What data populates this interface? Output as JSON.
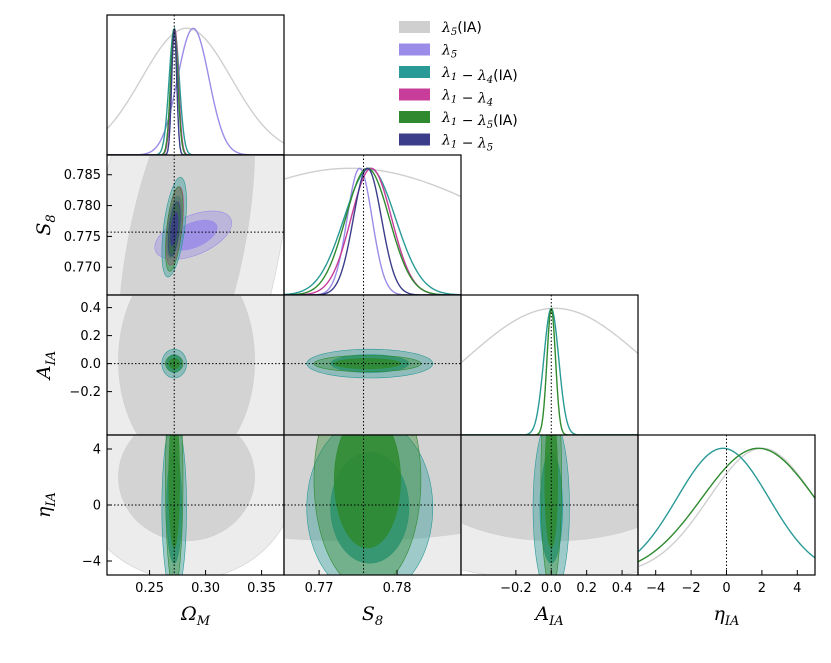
{
  "chart_data": {
    "type": "corner",
    "parameters": [
      {
        "key": "om",
        "label": "Ω_M",
        "label_main": "Ω",
        "label_sub": "M",
        "range": [
          0.212,
          0.37
        ],
        "fiducial": 0.272,
        "ticks": [
          {
            "v": 0.25,
            "t": "0.25"
          },
          {
            "v": 0.3,
            "t": "0.30"
          },
          {
            "v": 0.35,
            "t": "0.35"
          }
        ]
      },
      {
        "key": "s8",
        "label": "S_8",
        "label_main": "S",
        "label_sub": "8",
        "range": [
          0.7655,
          0.7882
        ],
        "fiducial": 0.7757,
        "ticks": [
          {
            "v": 0.77,
            "t": "0.770"
          },
          {
            "v": 0.775,
            "t": "0.775"
          },
          {
            "v": 0.78,
            "t": "0.780"
          },
          {
            "v": 0.785,
            "t": "0.785"
          }
        ],
        "xticks": [
          {
            "v": 0.77,
            "t": "0.77"
          },
          {
            "v": 0.78,
            "t": "0.78"
          }
        ]
      },
      {
        "key": "aia",
        "label": "A_IA",
        "label_main": "A",
        "label_sub": "IA",
        "range": [
          -0.51,
          0.49
        ],
        "fiducial": 0.0,
        "ticks": [
          {
            "v": -0.2,
            "t": "−0.2"
          },
          {
            "v": 0.0,
            "t": "0.0"
          },
          {
            "v": 0.2,
            "t": "0.2"
          },
          {
            "v": 0.4,
            "t": "0.4"
          }
        ]
      },
      {
        "key": "eia",
        "label": "η_IA",
        "label_main": "η",
        "label_sub": "IA",
        "range": [
          -5.0,
          5.0
        ],
        "fiducial": 0.0,
        "ticks": [
          {
            "v": -4,
            "t": "−4"
          },
          {
            "v": 0,
            "t": "0"
          },
          {
            "v": 4,
            "t": "4"
          }
        ],
        "xticks": [
          {
            "v": -4,
            "t": "−4"
          },
          {
            "v": -2,
            "t": "−2"
          },
          {
            "v": 0,
            "t": "0"
          },
          {
            "v": 2,
            "t": "2"
          },
          {
            "v": 4,
            "t": "4"
          }
        ]
      }
    ],
    "series": [
      {
        "name": "λ_5(IA)",
        "label_parts": [
          {
            "t": "λ"
          },
          {
            "t": "5",
            "sub": true
          },
          {
            "t": "(IA)",
            "plain": true
          }
        ],
        "color": "#cfcfcf",
        "mean": {
          "om": 0.283,
          "s8": 0.774,
          "aia": 0.02,
          "eia": 2.0
        },
        "sigma": {
          "om": 0.04,
          "s8": 0.02,
          "aia": 0.5,
          "eia": 3.0
        }
      },
      {
        "name": "λ_5",
        "label_parts": [
          {
            "t": "λ"
          },
          {
            "t": "5",
            "sub": true
          }
        ],
        "color": "#9a8ce8",
        "mean": {
          "om": 0.289,
          "s8": 0.7752
        },
        "sigma": {
          "om": 0.014,
          "s8": 0.0016
        }
      },
      {
        "name": "λ_1 − λ_4(IA)",
        "label_parts": [
          {
            "t": "λ"
          },
          {
            "t": "1",
            "sub": true
          },
          {
            "t": " − λ"
          },
          {
            "t": "4",
            "sub": true
          },
          {
            "t": "(IA)",
            "plain": true
          }
        ],
        "color": "#2a9a96",
        "mean": {
          "om": 0.272,
          "s8": 0.7765,
          "aia": 0.0,
          "eia": -0.2
        },
        "sigma": {
          "om": 0.0045,
          "s8": 0.0033,
          "aia": 0.042,
          "eia": 2.6
        }
      },
      {
        "name": "λ_1 − λ_4",
        "label_parts": [
          {
            "t": "λ"
          },
          {
            "t": "1",
            "sub": true
          },
          {
            "t": " − λ"
          },
          {
            "t": "4",
            "sub": true
          }
        ],
        "color": "#c83c9a",
        "mean": {
          "om": 0.2725,
          "s8": 0.7767
        },
        "sigma": {
          "om": 0.0032,
          "s8": 0.0026
        }
      },
      {
        "name": "λ_1 − λ_5(IA)",
        "label_parts": [
          {
            "t": "λ"
          },
          {
            "t": "1",
            "sub": true
          },
          {
            "t": " − λ"
          },
          {
            "t": "5",
            "sub": true
          },
          {
            "t": "(IA)",
            "plain": true
          }
        ],
        "color": "#2f8a2f",
        "mean": {
          "om": 0.272,
          "s8": 0.7762,
          "aia": 0.0,
          "eia": 1.8
        },
        "sigma": {
          "om": 0.0032,
          "s8": 0.0028,
          "aia": 0.024,
          "eia": 3.2
        }
      },
      {
        "name": "λ_1 − λ_5",
        "label_parts": [
          {
            "t": "λ"
          },
          {
            "t": "1",
            "sub": true
          },
          {
            "t": " − λ"
          },
          {
            "t": "5",
            "sub": true
          }
        ],
        "color": "#3b3d8a",
        "mean": {
          "om": 0.272,
          "s8": 0.7762
        },
        "sigma": {
          "om": 0.0022,
          "s8": 0.0018
        }
      }
    ],
    "legend": "top-right",
    "grid": false
  }
}
